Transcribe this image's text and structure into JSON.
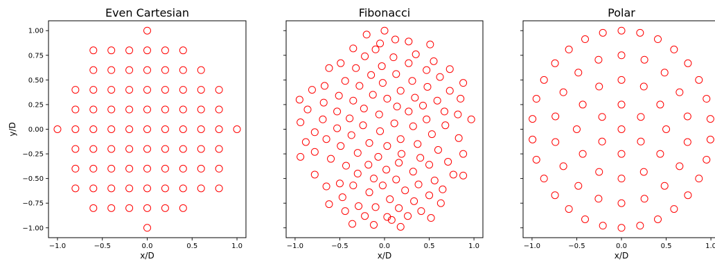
{
  "chart_data": [
    {
      "type": "scatter",
      "title": "Even Cartesian",
      "xlabel": "x/D",
      "ylabel": "y/D",
      "xlim": [
        -1.1,
        1.1
      ],
      "ylim": [
        -1.1,
        1.1
      ],
      "xticks": [
        "−1.0",
        "−0.5",
        "0.0",
        "0.5",
        "1.0"
      ],
      "yticks": [
        "−1.00",
        "−0.75",
        "−0.50",
        "−0.25",
        "0.00",
        "0.25",
        "0.50",
        "0.75",
        "1.00"
      ],
      "marker": "hollow-circle",
      "color": "#ff0000",
      "points": [
        [
          0,
          1.0
        ],
        [
          -0.6,
          0.8
        ],
        [
          -0.4,
          0.8
        ],
        [
          -0.2,
          0.8
        ],
        [
          0,
          0.8
        ],
        [
          0.2,
          0.8
        ],
        [
          0.4,
          0.8
        ],
        [
          -0.6,
          0.6
        ],
        [
          -0.4,
          0.6
        ],
        [
          -0.2,
          0.6
        ],
        [
          0,
          0.6
        ],
        [
          0.2,
          0.6
        ],
        [
          0.4,
          0.6
        ],
        [
          0.6,
          0.6
        ],
        [
          -0.8,
          0.4
        ],
        [
          -0.6,
          0.4
        ],
        [
          -0.4,
          0.4
        ],
        [
          -0.2,
          0.4
        ],
        [
          0,
          0.4
        ],
        [
          0.2,
          0.4
        ],
        [
          0.4,
          0.4
        ],
        [
          0.6,
          0.4
        ],
        [
          0.8,
          0.4
        ],
        [
          -0.8,
          0.2
        ],
        [
          -0.6,
          0.2
        ],
        [
          -0.4,
          0.2
        ],
        [
          -0.2,
          0.2
        ],
        [
          0,
          0.2
        ],
        [
          0.2,
          0.2
        ],
        [
          0.4,
          0.2
        ],
        [
          0.6,
          0.2
        ],
        [
          0.8,
          0.2
        ],
        [
          -1.0,
          0
        ],
        [
          -0.8,
          0
        ],
        [
          -0.6,
          0
        ],
        [
          -0.4,
          0
        ],
        [
          -0.2,
          0
        ],
        [
          0,
          0
        ],
        [
          0.2,
          0
        ],
        [
          0.4,
          0
        ],
        [
          0.6,
          0
        ],
        [
          0.8,
          0
        ],
        [
          1.0,
          0
        ],
        [
          -0.8,
          -0.2
        ],
        [
          -0.6,
          -0.2
        ],
        [
          -0.4,
          -0.2
        ],
        [
          -0.2,
          -0.2
        ],
        [
          0,
          -0.2
        ],
        [
          0.2,
          -0.2
        ],
        [
          0.4,
          -0.2
        ],
        [
          0.6,
          -0.2
        ],
        [
          0.8,
          -0.2
        ],
        [
          -0.8,
          -0.4
        ],
        [
          -0.6,
          -0.4
        ],
        [
          -0.4,
          -0.4
        ],
        [
          -0.2,
          -0.4
        ],
        [
          0,
          -0.4
        ],
        [
          0.2,
          -0.4
        ],
        [
          0.4,
          -0.4
        ],
        [
          0.6,
          -0.4
        ],
        [
          0.8,
          -0.4
        ],
        [
          -0.8,
          -0.6
        ],
        [
          -0.6,
          -0.6
        ],
        [
          -0.4,
          -0.6
        ],
        [
          -0.2,
          -0.6
        ],
        [
          0,
          -0.6
        ],
        [
          0.2,
          -0.6
        ],
        [
          0.4,
          -0.6
        ],
        [
          0.6,
          -0.6
        ],
        [
          0.8,
          -0.6
        ],
        [
          -0.6,
          -0.8
        ],
        [
          -0.4,
          -0.8
        ],
        [
          -0.2,
          -0.8
        ],
        [
          0,
          -0.8
        ],
        [
          0.2,
          -0.8
        ],
        [
          0.4,
          -0.8
        ],
        [
          0,
          -1.0
        ]
      ]
    },
    {
      "type": "scatter",
      "title": "Fibonacci",
      "xlabel": "x/D",
      "ylabel": "",
      "xlim": [
        -1.1,
        1.1
      ],
      "ylim": [
        -1.1,
        1.1
      ],
      "xticks": [
        "−1.0",
        "−0.5",
        "0.0",
        "0.5",
        "1.0"
      ],
      "marker": "hollow-circle",
      "color": "#ff0000",
      "points": [
        [
          0.0,
          1.0
        ],
        [
          -0.2,
          0.96
        ],
        [
          0.12,
          0.91
        ],
        [
          0.27,
          0.89
        ],
        [
          -0.05,
          0.87
        ],
        [
          0.51,
          0.86
        ],
        [
          -0.35,
          0.82
        ],
        [
          -0.1,
          0.81
        ],
        [
          0.35,
          0.76
        ],
        [
          -0.22,
          0.74
        ],
        [
          0.1,
          0.73
        ],
        [
          0.55,
          0.69
        ],
        [
          -0.49,
          0.67
        ],
        [
          0.27,
          0.67
        ],
        [
          -0.03,
          0.64
        ],
        [
          0.73,
          0.61
        ],
        [
          -0.32,
          0.62
        ],
        [
          -0.62,
          0.62
        ],
        [
          0.47,
          0.6
        ],
        [
          -0.15,
          0.55
        ],
        [
          0.13,
          0.56
        ],
        [
          0.31,
          0.49
        ],
        [
          0.62,
          0.53
        ],
        [
          -0.44,
          0.49
        ],
        [
          -0.02,
          0.47
        ],
        [
          0.88,
          0.47
        ],
        [
          -0.28,
          0.44
        ],
        [
          -0.67,
          0.44
        ],
        [
          0.48,
          0.43
        ],
        [
          0.18,
          0.39
        ],
        [
          -0.81,
          0.4
        ],
        [
          0.73,
          0.39
        ],
        [
          -0.13,
          0.35
        ],
        [
          0.03,
          0.31
        ],
        [
          -0.51,
          0.34
        ],
        [
          0.34,
          0.32
        ],
        [
          -0.35,
          0.29
        ],
        [
          0.59,
          0.29
        ],
        [
          0.85,
          0.31
        ],
        [
          -0.68,
          0.27
        ],
        [
          -0.95,
          0.3
        ],
        [
          0.14,
          0.23
        ],
        [
          0.43,
          0.24
        ],
        [
          -0.23,
          0.21
        ],
        [
          -0.86,
          0.2
        ],
        [
          -0.53,
          0.18
        ],
        [
          0.27,
          0.18
        ],
        [
          0.67,
          0.18
        ],
        [
          -0.06,
          0.15
        ],
        [
          0.47,
          0.1
        ],
        [
          -0.39,
          0.11
        ],
        [
          0.97,
          0.1
        ],
        [
          -0.69,
          0.1
        ],
        [
          0.82,
          0.15
        ],
        [
          0.11,
          0.06
        ],
        [
          -0.94,
          0.07
        ],
        [
          -0.24,
          0.04
        ],
        [
          0.32,
          0.03
        ],
        [
          0.68,
          0.04
        ],
        [
          -0.53,
          0.01
        ],
        [
          -0.78,
          -0.03
        ],
        [
          -0.05,
          -0.02
        ],
        [
          0.53,
          -0.05
        ],
        [
          -0.37,
          -0.06
        ],
        [
          0.18,
          -0.1
        ],
        [
          0.83,
          -0.09
        ],
        [
          -0.65,
          -0.1
        ],
        [
          -0.17,
          -0.14
        ],
        [
          0.37,
          -0.15
        ],
        [
          -0.88,
          -0.13
        ],
        [
          0.03,
          -0.17
        ],
        [
          -0.49,
          -0.17
        ],
        [
          0.6,
          -0.21
        ],
        [
          0.88,
          -0.25
        ],
        [
          -0.78,
          -0.23
        ],
        [
          0.19,
          -0.25
        ],
        [
          -0.3,
          -0.24
        ],
        [
          0.4,
          -0.29
        ],
        [
          -0.07,
          -0.28
        ],
        [
          -0.6,
          -0.3
        ],
        [
          -0.94,
          -0.28
        ],
        [
          0.71,
          -0.33
        ],
        [
          -0.43,
          -0.37
        ],
        [
          0.16,
          -0.34
        ],
        [
          -0.18,
          -0.36
        ],
        [
          0.5,
          -0.36
        ],
        [
          -0.78,
          -0.46
        ],
        [
          0.02,
          -0.41
        ],
        [
          0.32,
          -0.43
        ],
        [
          -0.3,
          -0.45
        ],
        [
          0.77,
          -0.46
        ],
        [
          0.88,
          -0.47
        ],
        [
          -0.5,
          -0.55
        ],
        [
          0.56,
          -0.52
        ],
        [
          0.13,
          -0.51
        ],
        [
          -0.12,
          -0.5
        ],
        [
          -0.35,
          -0.57
        ],
        [
          0.38,
          -0.56
        ],
        [
          0.65,
          -0.61
        ],
        [
          -0.65,
          -0.58
        ],
        [
          -0.02,
          -0.57
        ],
        [
          0.23,
          -0.62
        ],
        [
          -0.17,
          -0.64
        ],
        [
          0.5,
          -0.67
        ],
        [
          -0.47,
          -0.69
        ],
        [
          0.06,
          -0.71
        ],
        [
          -0.62,
          -0.76
        ],
        [
          0.33,
          -0.73
        ],
        [
          -0.29,
          -0.78
        ],
        [
          0.63,
          -0.75
        ],
        [
          0.16,
          -0.8
        ],
        [
          -0.1,
          -0.79
        ],
        [
          0.41,
          -0.83
        ],
        [
          -0.44,
          -0.83
        ],
        [
          -0.22,
          -0.88
        ],
        [
          0.03,
          -0.89
        ],
        [
          0.26,
          -0.88
        ],
        [
          0.52,
          -0.9
        ],
        [
          -0.36,
          -0.96
        ],
        [
          -0.12,
          -0.97
        ],
        [
          0.08,
          -0.92
        ],
        [
          0.18,
          -0.99
        ]
      ]
    },
    {
      "type": "scatter",
      "title": "Polar",
      "xlabel": "x/D",
      "ylabel": "",
      "xlim": [
        -1.1,
        1.1
      ],
      "ylim": [
        -1.1,
        1.1
      ],
      "xticks": [
        "−1.0",
        "−0.5",
        "0.0",
        "0.5",
        "1.0"
      ],
      "marker": "hollow-circle",
      "color": "#ff0000",
      "rings": [
        {
          "radius": 0.0,
          "count": 1
        },
        {
          "radius": 0.25,
          "count": 6
        },
        {
          "radius": 0.5,
          "count": 12
        },
        {
          "radius": 0.75,
          "count": 18
        },
        {
          "radius": 1.0,
          "count": 30
        }
      ]
    }
  ]
}
